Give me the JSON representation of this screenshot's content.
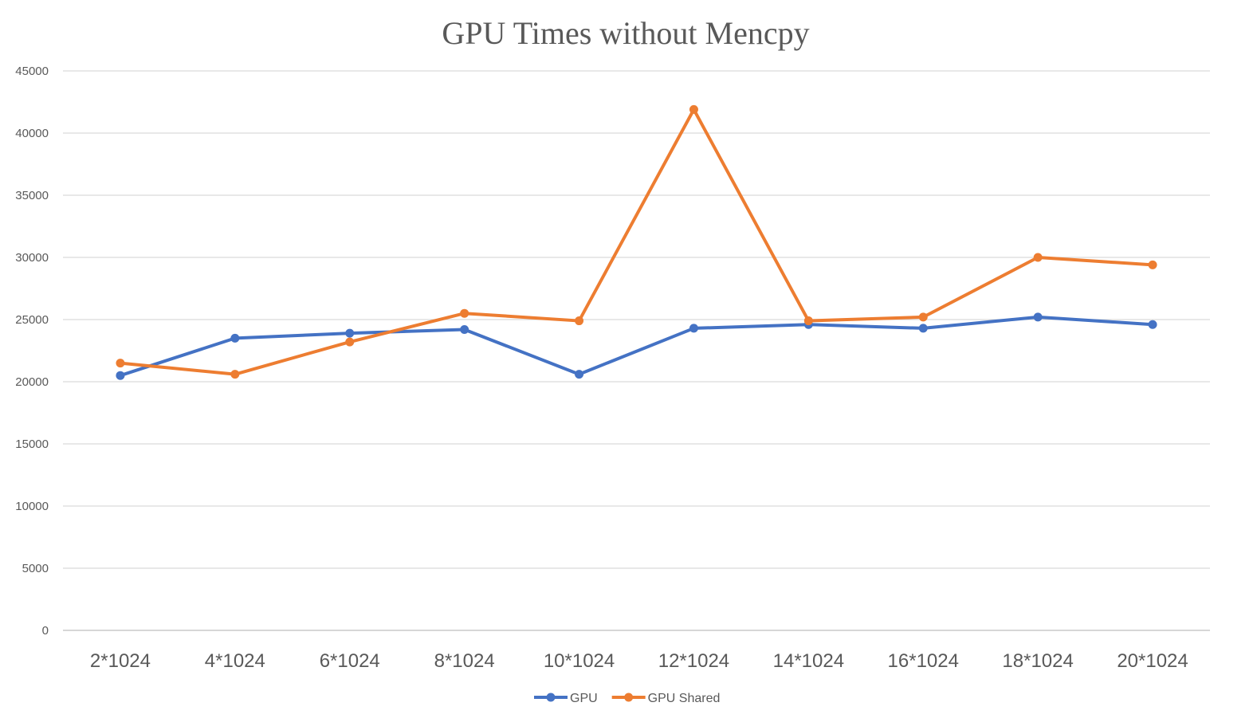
{
  "chart_data": {
    "type": "line",
    "title": "GPU Times without Mencpy",
    "categories": [
      "2*1024",
      "4*1024",
      "6*1024",
      "8*1024",
      "10*1024",
      "12*1024",
      "14*1024",
      "16*1024",
      "18*1024",
      "20*1024"
    ],
    "series": [
      {
        "name": "GPU",
        "color": "#4472c4",
        "values": [
          20500,
          23500,
          23900,
          24200,
          20600,
          24300,
          24600,
          24300,
          25200,
          24600
        ]
      },
      {
        "name": "GPU Shared",
        "color": "#ed7d31",
        "values": [
          21500,
          20600,
          23200,
          25500,
          24900,
          41900,
          24900,
          25200,
          30000,
          29400
        ]
      }
    ],
    "ylim": [
      0,
      45000
    ],
    "yticks": [
      "0",
      "5000",
      "10000",
      "15000",
      "20000",
      "25000",
      "30000",
      "35000",
      "40000",
      "45000"
    ],
    "grid": true,
    "legend": "bottom"
  }
}
